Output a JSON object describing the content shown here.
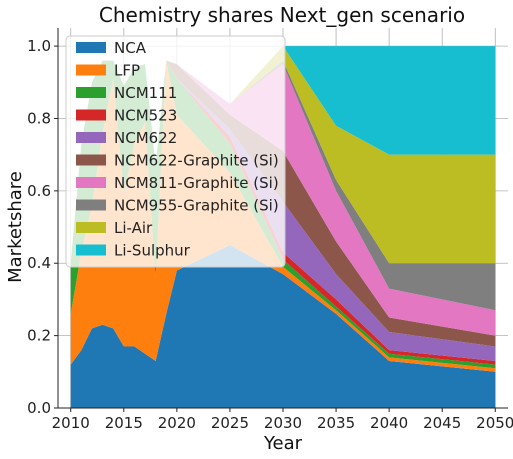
{
  "chart_data": {
    "type": "area",
    "title": "Chemistry shares Next_gen scenario",
    "xlabel": "Year",
    "ylabel": "Marketshare",
    "xlim": [
      2008.8,
      2051.2
    ],
    "ylim": [
      0,
      1.05
    ],
    "x_ticks": [
      2010,
      2015,
      2020,
      2025,
      2030,
      2035,
      2040,
      2045,
      2050
    ],
    "y_ticks": [
      0.0,
      0.2,
      0.4,
      0.6,
      0.8,
      1.0
    ],
    "grid": true,
    "legend_position": "top-left",
    "x": [
      2010,
      2011,
      2012,
      2013,
      2014,
      2015,
      2016,
      2017,
      2018,
      2019,
      2020,
      2025,
      2030,
      2035,
      2040,
      2050
    ],
    "series": [
      {
        "name": "NCA",
        "color": "#1f77b4",
        "values": [
          0.12,
          0.16,
          0.22,
          0.23,
          0.22,
          0.17,
          0.17,
          0.15,
          0.13,
          0.26,
          0.38,
          0.45,
          0.37,
          0.26,
          0.13,
          0.1
        ]
      },
      {
        "name": "LFP",
        "color": "#ff7f0e",
        "values": [
          0.14,
          0.27,
          0.34,
          0.53,
          0.69,
          0.42,
          0.56,
          0.64,
          0.23,
          0.7,
          0.43,
          0.2,
          0.02,
          0.01,
          0.01,
          0.01
        ]
      },
      {
        "name": "NCM111",
        "color": "#2ca02c",
        "values": [
          0.14,
          0.3,
          0.34,
          0.2,
          0.05,
          0.3,
          0.21,
          0.16,
          0.31,
          0.0,
          0.1,
          0.08,
          0.02,
          0.01,
          0.01,
          0.01
        ]
      },
      {
        "name": "NCM523",
        "color": "#d62728",
        "values": [
          0.0,
          0.0,
          0.0,
          0.0,
          0.0,
          0.0,
          0.0,
          0.0,
          0.0,
          0.0,
          0.0,
          0.02,
          0.02,
          0.02,
          0.01,
          0.01
        ]
      },
      {
        "name": "NCM622",
        "color": "#9467bd",
        "values": [
          0.0,
          0.0,
          0.0,
          0.0,
          0.0,
          0.0,
          0.0,
          0.0,
          0.0,
          0.0,
          0.0,
          0.02,
          0.14,
          0.07,
          0.05,
          0.04
        ]
      },
      {
        "name": "NCM622-Graphite (Si)",
        "color": "#8c564b",
        "values": [
          0.0,
          0.0,
          0.0,
          0.0,
          0.0,
          0.0,
          0.0,
          0.0,
          0.0,
          0.0,
          0.04,
          0.04,
          0.14,
          0.09,
          0.04,
          0.03
        ]
      },
      {
        "name": "NCM811-Graphite (Si)",
        "color": "#e377c2",
        "values": [
          0.0,
          0.0,
          0.0,
          0.0,
          0.0,
          0.0,
          0.0,
          0.0,
          0.0,
          0.0,
          0.0,
          0.03,
          0.24,
          0.14,
          0.08,
          0.07
        ]
      },
      {
        "name": "NCM955-Graphite (Si)",
        "color": "#7f7f7f",
        "values": [
          0.0,
          0.0,
          0.0,
          0.0,
          0.0,
          0.0,
          0.0,
          0.0,
          0.0,
          0.0,
          0.0,
          0.0,
          0.01,
          0.03,
          0.07,
          0.13
        ]
      },
      {
        "name": "Li-Air",
        "color": "#bcbd22",
        "values": [
          0.0,
          0.0,
          0.0,
          0.0,
          0.0,
          0.0,
          0.0,
          0.0,
          0.0,
          0.0,
          0.0,
          0.0,
          0.04,
          0.15,
          0.3,
          0.3
        ]
      },
      {
        "name": "Li-Sulphur",
        "color": "#17becf",
        "values": [
          0.0,
          0.0,
          0.0,
          0.0,
          0.0,
          0.0,
          0.0,
          0.0,
          0.0,
          0.0,
          0.0,
          0.0,
          0.0,
          0.22,
          0.3,
          0.3
        ]
      }
    ]
  }
}
